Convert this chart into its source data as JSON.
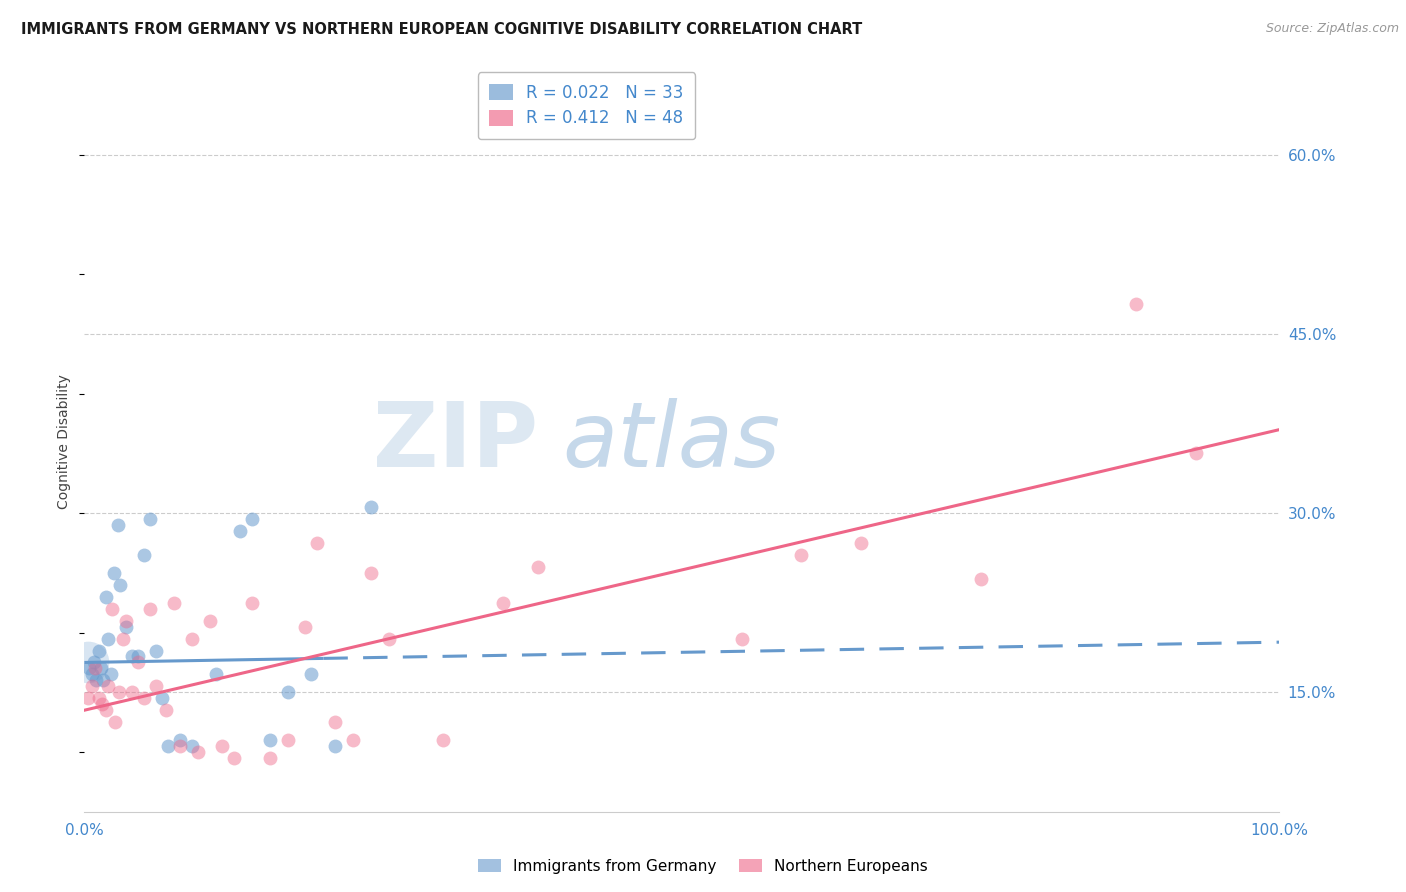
{
  "title": "IMMIGRANTS FROM GERMANY VS NORTHERN EUROPEAN COGNITIVE DISABILITY CORRELATION CHART",
  "source": "Source: ZipAtlas.com",
  "ylabel": "Cognitive Disability",
  "yticks": [
    15.0,
    30.0,
    45.0,
    60.0
  ],
  "ytick_labels": [
    "15.0%",
    "30.0%",
    "45.0%",
    "60.0%"
  ],
  "xtick_labels": [
    "0.0%",
    "100.0%"
  ],
  "xlim": [
    0,
    100
  ],
  "ylim": [
    5,
    67
  ],
  "legend_blue_r": "0.022",
  "legend_blue_n": "33",
  "legend_pink_r": "0.412",
  "legend_pink_n": "48",
  "blue_color": "#6699CC",
  "pink_color": "#EE6688",
  "legend_label_blue": "Immigrants from Germany",
  "legend_label_pink": "Northern Europeans",
  "blue_scatter_x": [
    0.4,
    0.6,
    0.8,
    1.0,
    1.2,
    1.4,
    1.6,
    1.8,
    2.0,
    2.2,
    2.5,
    2.8,
    3.0,
    3.5,
    4.0,
    4.5,
    5.0,
    5.5,
    6.0,
    6.5,
    7.0,
    8.0,
    9.0,
    11.0,
    13.0,
    14.0,
    15.5,
    17.0,
    19.0,
    21.0,
    24.0
  ],
  "blue_scatter_y": [
    17.0,
    16.5,
    17.5,
    16.0,
    18.5,
    17.0,
    16.0,
    23.0,
    19.5,
    16.5,
    25.0,
    29.0,
    24.0,
    20.5,
    18.0,
    18.0,
    26.5,
    29.5,
    18.5,
    14.5,
    10.5,
    11.0,
    10.5,
    16.5,
    28.5,
    29.5,
    11.0,
    15.0,
    16.5,
    10.5,
    30.5
  ],
  "pink_scatter_x": [
    0.3,
    0.6,
    0.9,
    1.2,
    1.5,
    1.8,
    2.0,
    2.3,
    2.6,
    2.9,
    3.2,
    3.5,
    4.0,
    4.5,
    5.0,
    5.5,
    6.0,
    6.8,
    7.5,
    8.0,
    9.0,
    9.5,
    10.5,
    11.5,
    12.5,
    14.0,
    15.5,
    17.0,
    18.5,
    19.5,
    21.0,
    22.5,
    24.0,
    25.5,
    30.0,
    35.0,
    38.0,
    55.0,
    60.0,
    65.0,
    75.0,
    88.0,
    93.0
  ],
  "pink_scatter_y": [
    14.5,
    15.5,
    17.0,
    14.5,
    14.0,
    13.5,
    15.5,
    22.0,
    12.5,
    15.0,
    19.5,
    21.0,
    15.0,
    17.5,
    14.5,
    22.0,
    15.5,
    13.5,
    22.5,
    10.5,
    19.5,
    10.0,
    21.0,
    10.5,
    9.5,
    22.5,
    9.5,
    11.0,
    20.5,
    27.5,
    12.5,
    11.0,
    25.0,
    19.5,
    11.0,
    22.5,
    25.5,
    19.5,
    26.5,
    27.5,
    24.5,
    47.5,
    35.0
  ],
  "blue_reg_x0": 0,
  "blue_reg_x1": 100,
  "blue_reg_y0": 17.5,
  "blue_reg_y1": 19.2,
  "blue_solid_end_x": 20,
  "pink_reg_x0": 0,
  "pink_reg_x1": 100,
  "pink_reg_y0": 13.5,
  "pink_reg_y1": 37.0,
  "big_blue_x": 0.3,
  "big_blue_y": 17.5,
  "big_blue_size": 900
}
